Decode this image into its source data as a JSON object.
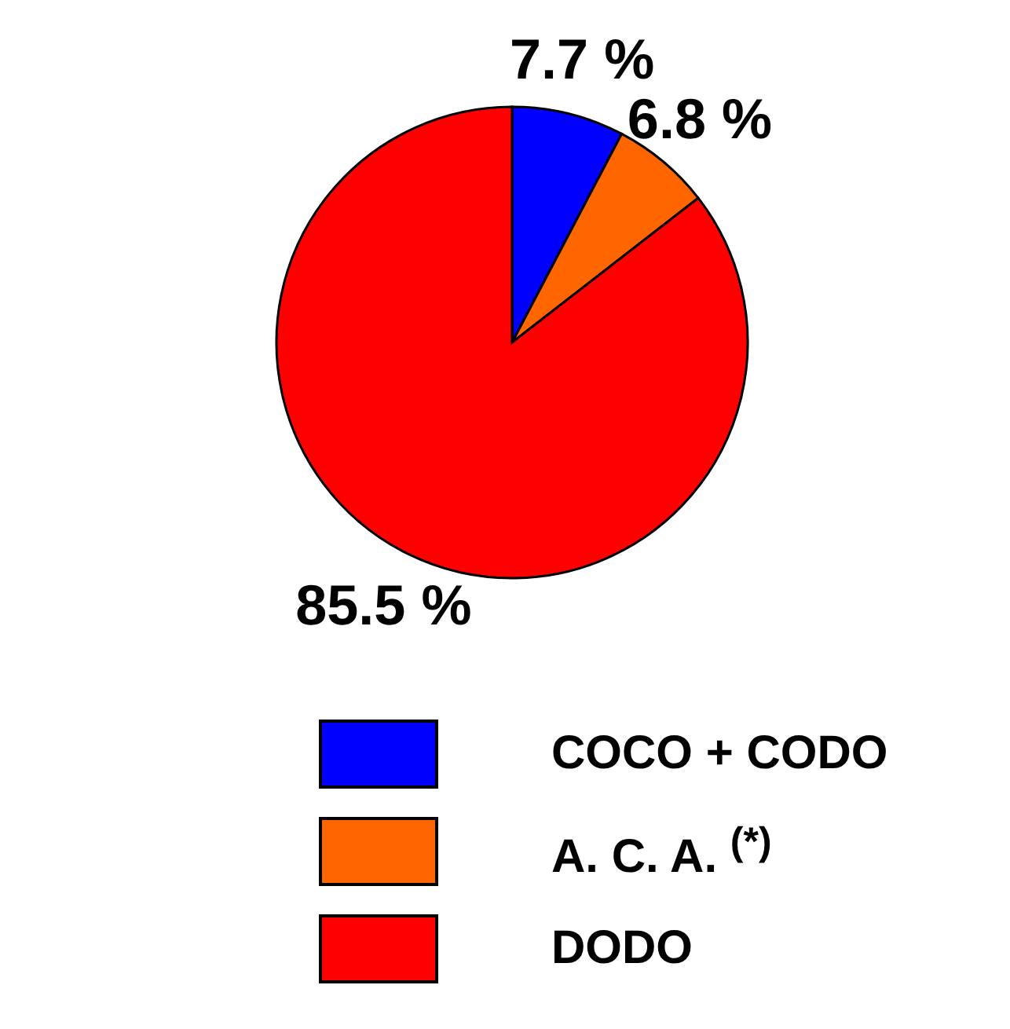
{
  "chart_data": {
    "type": "pie",
    "categories": [
      "COCO + CODO",
      "A. C. A. $^{(*)}$",
      "DODO"
    ],
    "values": [
      7.7,
      6.8,
      85.5
    ],
    "colors": [
      "#0000ff",
      "#ff6600",
      "#ff0000"
    ],
    "value_labels": [
      "7.7 %",
      "6.8 %",
      "85.5 %"
    ],
    "legend": "bottom"
  }
}
